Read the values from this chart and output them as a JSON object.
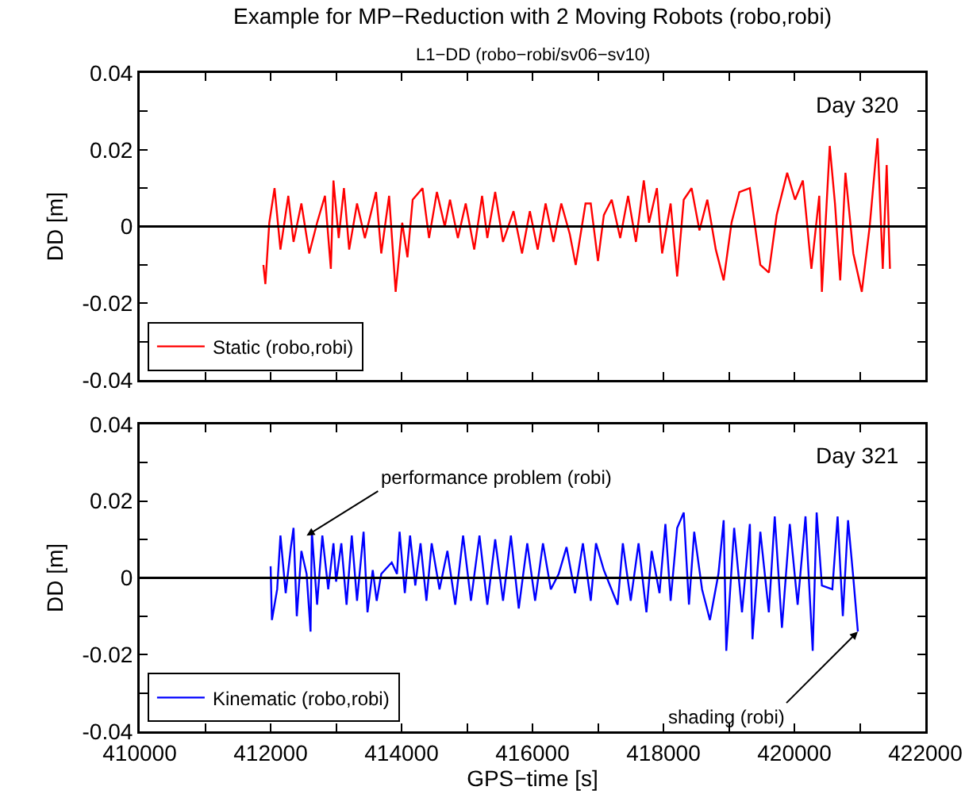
{
  "chart_data": [
    {
      "type": "line",
      "title": "Example for MP−Reduction with 2 Moving Robots (robo,robi)",
      "subtitle": "L1−DD (robo−robi/sv06−sv10)",
      "ylabel": "DD [m]",
      "annotations": [
        "Day 320"
      ],
      "xlim": [
        410000,
        422000
      ],
      "xticks": [
        410000,
        {
          "value": 411000,
          "label": null
        },
        412000,
        {
          "value": 413000,
          "label": null
        },
        414000,
        {
          "value": 415000,
          "label": null
        },
        416000,
        {
          "value": 417000,
          "label": null
        },
        418000,
        {
          "value": 419000,
          "label": null
        },
        420000,
        {
          "value": 421000,
          "label": null
        },
        422000
      ],
      "ylim": [
        -0.04,
        0.04
      ],
      "yticks": [
        -0.04,
        {
          "value": -0.03,
          "label": null
        },
        -0.02,
        {
          "value": -0.01,
          "label": null
        },
        0,
        {
          "value": 0.01,
          "label": null
        },
        0.02,
        {
          "value": 0.03,
          "label": null
        },
        0.04
      ],
      "tick_labels": "y",
      "grid": false,
      "legend": "bottom left",
      "ref_lines": [
        {
          "axis": "y",
          "value": 0,
          "color": "#000000"
        }
      ],
      "series": [
        {
          "name": "Static (robo,robi)",
          "color": "#ff0000",
          "x": [
            411890,
            411920,
            411980,
            412060,
            412150,
            412270,
            412350,
            412470,
            412590,
            412710,
            412830,
            412920,
            412960,
            413040,
            413120,
            413200,
            413320,
            413440,
            413610,
            413690,
            413810,
            413910,
            414010,
            414090,
            414170,
            414320,
            414420,
            414540,
            414660,
            414740,
            414860,
            414980,
            415110,
            415230,
            415310,
            415430,
            415550,
            415710,
            415840,
            415960,
            416080,
            416200,
            416320,
            416440,
            416570,
            416660,
            416810,
            416890,
            417000,
            417090,
            417210,
            417340,
            417460,
            417580,
            417700,
            417780,
            417900,
            417980,
            418110,
            418210,
            418310,
            418430,
            418550,
            418670,
            418800,
            418920,
            419040,
            419160,
            419320,
            419480,
            419610,
            419730,
            419890,
            420010,
            420130,
            420260,
            420380,
            420420,
            420540,
            420620,
            420700,
            420780,
            420900,
            421030,
            421150,
            421270,
            421350,
            421410,
            421460
          ],
          "values": [
            -0.01,
            -0.015,
            0.001,
            0.01,
            -0.006,
            0.008,
            -0.004,
            0.006,
            -0.007,
            0.001,
            0.008,
            -0.011,
            0.012,
            -0.003,
            0.01,
            -0.006,
            0.006,
            -0.003,
            0.009,
            -0.007,
            0.008,
            -0.017,
            0.001,
            -0.008,
            0.007,
            0.01,
            -0.003,
            0.009,
            0,
            0.007,
            -0.003,
            0.006,
            -0.006,
            0.008,
            -0.003,
            0.009,
            -0.004,
            0.004,
            -0.007,
            0.004,
            -0.006,
            0.006,
            -0.004,
            0.006,
            -0.002,
            -0.01,
            0.006,
            0.006,
            -0.009,
            0.003,
            0.007,
            -0.003,
            0.008,
            -0.004,
            0.012,
            0.001,
            0.01,
            -0.007,
            0.006,
            -0.013,
            0.007,
            0.01,
            -0.001,
            0.007,
            -0.006,
            -0.014,
            0.001,
            0.009,
            0.01,
            -0.01,
            -0.012,
            0.003,
            0.014,
            0.007,
            0.012,
            -0.011,
            0.008,
            -0.017,
            0.021,
            0.006,
            -0.014,
            0.014,
            -0.007,
            -0.017,
            0,
            0.023,
            -0.011,
            0.016,
            -0.011
          ]
        }
      ]
    },
    {
      "type": "line",
      "xlabel": "GPS−time [s]",
      "ylabel": "DD [m]",
      "annotations": [
        "Day 321",
        {
          "text": "performance problem (robi)",
          "x": 412550,
          "y": 0.011
        },
        {
          "text": "shading (robi)",
          "x": 420970,
          "y": -0.014
        }
      ],
      "xlim": [
        410000,
        422000
      ],
      "xticks": [
        410000,
        {
          "value": 411000,
          "label": null
        },
        412000,
        {
          "value": 413000,
          "label": null
        },
        414000,
        {
          "value": 415000,
          "label": null
        },
        416000,
        {
          "value": 417000,
          "label": null
        },
        418000,
        {
          "value": 419000,
          "label": null
        },
        420000,
        {
          "value": 421000,
          "label": null
        },
        422000
      ],
      "ylim": [
        -0.04,
        0.04
      ],
      "yticks": [
        -0.04,
        {
          "value": -0.03,
          "label": null
        },
        -0.02,
        {
          "value": -0.01,
          "label": null
        },
        0,
        {
          "value": 0.01,
          "label": null
        },
        0.02,
        {
          "value": 0.03,
          "label": null
        },
        0.04
      ],
      "grid": false,
      "legend": "bottom left",
      "ref_lines": [
        {
          "axis": "y",
          "value": 0,
          "color": "#000000"
        }
      ],
      "series": [
        {
          "name": "Kinematic (robo,robi)",
          "color": "#0000ff",
          "x": [
            412000,
            412020,
            412100,
            412150,
            412230,
            412310,
            412350,
            412400,
            412470,
            412550,
            412610,
            412630,
            412710,
            412790,
            412880,
            412960,
            413000,
            413080,
            413160,
            413240,
            413320,
            413420,
            413480,
            413560,
            413620,
            413690,
            413850,
            413930,
            413970,
            414050,
            414130,
            414210,
            414290,
            414380,
            414460,
            414580,
            414700,
            414820,
            414940,
            415060,
            415190,
            415310,
            415430,
            415550,
            415670,
            415790,
            415920,
            416040,
            416160,
            416280,
            416400,
            416520,
            416650,
            416770,
            416890,
            416970,
            417090,
            417300,
            417380,
            417500,
            417620,
            417740,
            417820,
            417940,
            418030,
            418110,
            418210,
            418310,
            418390,
            418470,
            418590,
            418710,
            418840,
            418920,
            418960,
            419080,
            419200,
            419320,
            419360,
            419480,
            419610,
            419700,
            419810,
            419930,
            420050,
            420170,
            420280,
            420340,
            420420,
            420580,
            420660,
            420740,
            420820,
            420900,
            420970
          ],
          "values": [
            0.003,
            -0.011,
            -0.003,
            0.011,
            -0.004,
            0.008,
            0.013,
            -0.01,
            0.007,
            0.001,
            -0.014,
            0.012,
            -0.007,
            0.011,
            -0.003,
            0.009,
            -0.001,
            0.009,
            -0.007,
            0.011,
            -0.006,
            0.012,
            -0.009,
            0.002,
            -0.006,
            0.001,
            0.004,
            0.001,
            0.012,
            -0.004,
            0.011,
            -0.002,
            0.009,
            -0.006,
            0.009,
            -0.003,
            0.007,
            -0.007,
            0.011,
            -0.006,
            0.011,
            -0.007,
            0.01,
            -0.006,
            0.011,
            -0.008,
            0.009,
            -0.006,
            0.009,
            -0.003,
            0.001,
            0.008,
            -0.004,
            0.009,
            -0.006,
            0.009,
            0.002,
            -0.007,
            0.009,
            -0.006,
            0.009,
            -0.009,
            0.007,
            -0.004,
            0.014,
            -0.006,
            0.013,
            0.017,
            -0.007,
            0.012,
            -0.003,
            -0.011,
            0.001,
            0.015,
            -0.019,
            0.013,
            -0.009,
            0.014,
            -0.016,
            0.012,
            -0.009,
            0.016,
            -0.013,
            0.014,
            -0.007,
            0.016,
            -0.019,
            0.017,
            -0.002,
            -0.003,
            0.016,
            -0.01,
            0.015,
            0,
            -0.014
          ]
        }
      ]
    }
  ]
}
